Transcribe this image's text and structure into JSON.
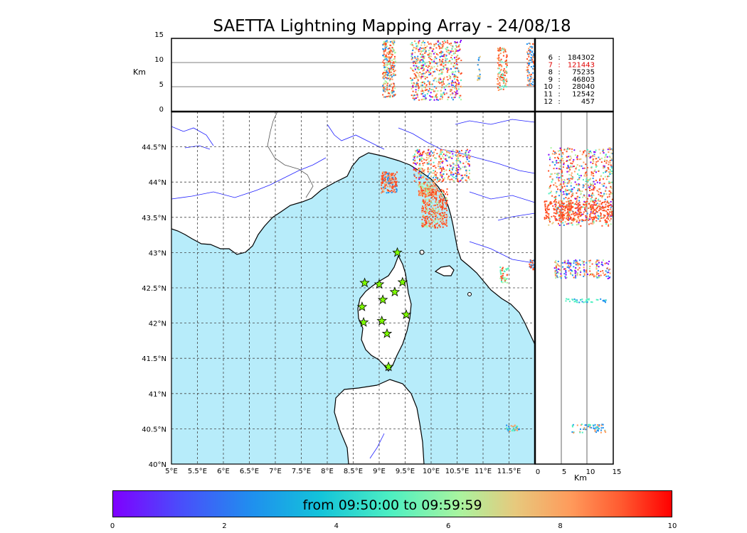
{
  "title": "SAETTA Lightning Mapping Array - 24/08/18",
  "altitude_panel": {
    "ylabel": "Km",
    "yticks": [
      "15",
      "10",
      "5",
      "0"
    ]
  },
  "side_panel": {
    "xlabel": "Km",
    "xticks": [
      "0",
      "5",
      "10",
      "15"
    ]
  },
  "map": {
    "lon_ticks": [
      "5°E",
      "5.5°E",
      "6°E",
      "6.5°E",
      "7°E",
      "7.5°E",
      "8°E",
      "8.5°E",
      "9°E",
      "9.5°E",
      "10°E",
      "10.5°E",
      "11°E",
      "11.5°E"
    ],
    "lat_ticks": [
      "44.5°N",
      "44°N",
      "43.5°N",
      "43°N",
      "42.5°N",
      "42°N",
      "41.5°N",
      "41°N",
      "40.5°N",
      "40°N"
    ],
    "extent": {
      "lon": [
        5,
        12
      ],
      "lat": [
        40,
        45
      ]
    },
    "sea_color": "#b7ecfa",
    "land_color": "#ffffff",
    "river_color": "#2020ff",
    "station_color": "#7fff00",
    "stations": [
      {
        "lon": 9.35,
        "lat": 43.0
      },
      {
        "lon": 8.72,
        "lat": 42.57
      },
      {
        "lon": 9.0,
        "lat": 42.55
      },
      {
        "lon": 9.45,
        "lat": 42.58
      },
      {
        "lon": 9.3,
        "lat": 42.44
      },
      {
        "lon": 9.07,
        "lat": 42.33
      },
      {
        "lon": 8.67,
        "lat": 42.23
      },
      {
        "lon": 9.52,
        "lat": 42.12
      },
      {
        "lon": 9.05,
        "lat": 42.03
      },
      {
        "lon": 8.7,
        "lat": 42.01
      },
      {
        "lon": 9.15,
        "lat": 41.85
      },
      {
        "lon": 9.18,
        "lat": 41.38
      }
    ]
  },
  "counts": [
    {
      "hour": "6",
      "sep": ":",
      "value": "184302",
      "color": "#000000"
    },
    {
      "hour": "7",
      "sep": ":",
      "value": "121443",
      "color": "#e00000"
    },
    {
      "hour": "8",
      "sep": ":",
      "value": "75235",
      "color": "#000000"
    },
    {
      "hour": "9",
      "sep": ":",
      "value": "46803",
      "color": "#000000"
    },
    {
      "hour": "10",
      "sep": ":",
      "value": "28040",
      "color": "#000000"
    },
    {
      "hour": "11",
      "sep": ":",
      "value": "12542",
      "color": "#000000"
    },
    {
      "hour": "12",
      "sep": ":",
      "value": "457",
      "color": "#000000"
    }
  ],
  "colorbar": {
    "text": "from 09:50:00 to 09:59:59",
    "ticks": [
      "0",
      "2",
      "4",
      "6",
      "8",
      "10"
    ],
    "range": [
      0,
      10
    ]
  }
}
